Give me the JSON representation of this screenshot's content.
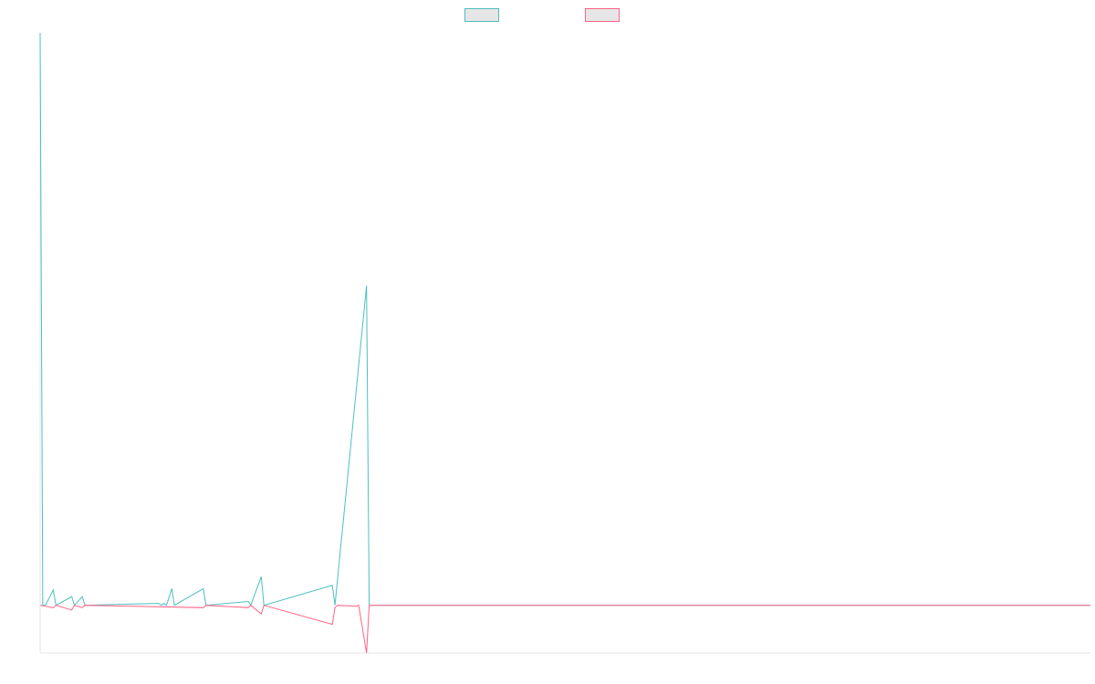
{
  "chart_data": {
    "type": "line",
    "title": "",
    "xlabel": "",
    "ylabel": "",
    "legend": {
      "position": "top-center",
      "show_labels": false
    },
    "grid": false,
    "x_count": 400,
    "ylim": [
      -1,
      12
    ],
    "baseline": 0,
    "series": [
      {
        "color": "#4bc0c0",
        "fill": "#e6e6e6",
        "points": [
          [
            0,
            12.0
          ],
          [
            1,
            0.0
          ],
          [
            2,
            0.0
          ],
          [
            5,
            0.32
          ],
          [
            6,
            0.0
          ],
          [
            12,
            0.18
          ],
          [
            13,
            0.0
          ],
          [
            16,
            0.18
          ],
          [
            17,
            0.0
          ],
          [
            45,
            0.04
          ],
          [
            46,
            0.0
          ],
          [
            47,
            0.04
          ],
          [
            48,
            0.0
          ],
          [
            50,
            0.35
          ],
          [
            51,
            0.0
          ],
          [
            62,
            0.35
          ],
          [
            63,
            0.0
          ],
          [
            79,
            0.08
          ],
          [
            80,
            0.0
          ],
          [
            84,
            0.6
          ],
          [
            85,
            0.0
          ],
          [
            111,
            0.42
          ],
          [
            112,
            0.0
          ],
          [
            124,
            6.7
          ],
          [
            125,
            0.0
          ],
          [
            399,
            0.0
          ]
        ]
      },
      {
        "color": "#ff6384",
        "fill": "#e6e6e6",
        "points": [
          [
            0,
            0.0
          ],
          [
            5,
            -0.05
          ],
          [
            6,
            0.0
          ],
          [
            12,
            -0.1
          ],
          [
            13,
            0.0
          ],
          [
            16,
            -0.05
          ],
          [
            17,
            0.0
          ],
          [
            62,
            -0.05
          ],
          [
            63,
            0.0
          ],
          [
            79,
            -0.05
          ],
          [
            80,
            0.0
          ],
          [
            84,
            -0.18
          ],
          [
            85,
            0.0
          ],
          [
            111,
            -0.4
          ],
          [
            112,
            -0.05
          ],
          [
            113,
            0.0
          ],
          [
            120,
            -0.02
          ],
          [
            121,
            0.0
          ],
          [
            124,
            -1.0
          ],
          [
            125,
            0.0
          ],
          [
            399,
            0.0
          ]
        ]
      }
    ]
  }
}
